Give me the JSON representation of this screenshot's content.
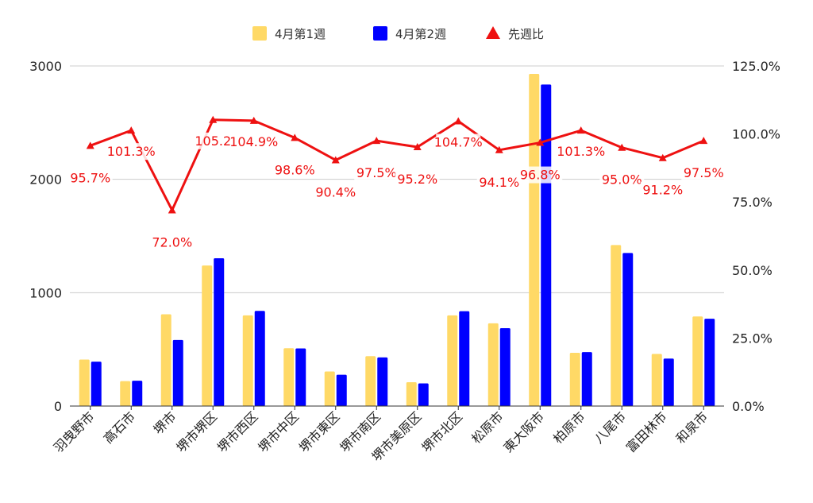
{
  "chart_data": {
    "type": "bar",
    "categories": [
      "羽曳野市",
      "高石市",
      "堺市",
      "堺市堺区",
      "堺市西区",
      "堺市中区",
      "堺市東区",
      "堺市南区",
      "堺市美原区",
      "堺市北区",
      "松原市",
      "東大阪市",
      "柏原市",
      "八尾市",
      "富田林市",
      "和泉市"
    ],
    "series": [
      {
        "name": "4月第1週",
        "type": "bar",
        "axis": "left",
        "color": "#FFD966",
        "values": [
          410,
          220,
          810,
          1240,
          800,
          510,
          305,
          440,
          210,
          800,
          730,
          2930,
          470,
          1420,
          460,
          790
        ]
      },
      {
        "name": "4月第2週",
        "type": "bar",
        "axis": "left",
        "color": "#0000FF",
        "values": [
          392,
          223,
          583,
          1304,
          839,
          508,
          276,
          429,
          200,
          837,
          687,
          2836,
          476,
          1350,
          419,
          770
        ]
      },
      {
        "name": "先週比",
        "type": "line",
        "axis": "right",
        "color": "#EE1111",
        "marker": "triangle",
        "values": [
          95.7,
          101.3,
          72.0,
          105.2,
          104.9,
          98.6,
          90.4,
          97.5,
          95.2,
          104.7,
          94.1,
          96.8,
          101.3,
          95.0,
          91.2,
          97.5
        ],
        "labels": [
          "95.7%",
          "101.3%",
          "72.0%",
          "105.2",
          "104.9%",
          "98.6%",
          "90.4%",
          "97.5%",
          "95.2%",
          "104.7%",
          "94.1%",
          "96.8%",
          "101.3%",
          "95.0%",
          "91.2%",
          "97.5%"
        ]
      }
    ],
    "left_axis": {
      "min": 0,
      "max": 3000,
      "ticks": [
        "0",
        "1000",
        "2000",
        "3000"
      ],
      "tick_values": [
        0,
        1000,
        2000,
        3000
      ]
    },
    "right_axis": {
      "min": 0,
      "max": 125,
      "ticks": [
        "0.0%",
        "25.0%",
        "50.0%",
        "75.0%",
        "100.0%",
        "125.0%"
      ],
      "tick_values": [
        0,
        25,
        50,
        75,
        100,
        125
      ]
    },
    "grid": true,
    "legend_position": "top"
  }
}
